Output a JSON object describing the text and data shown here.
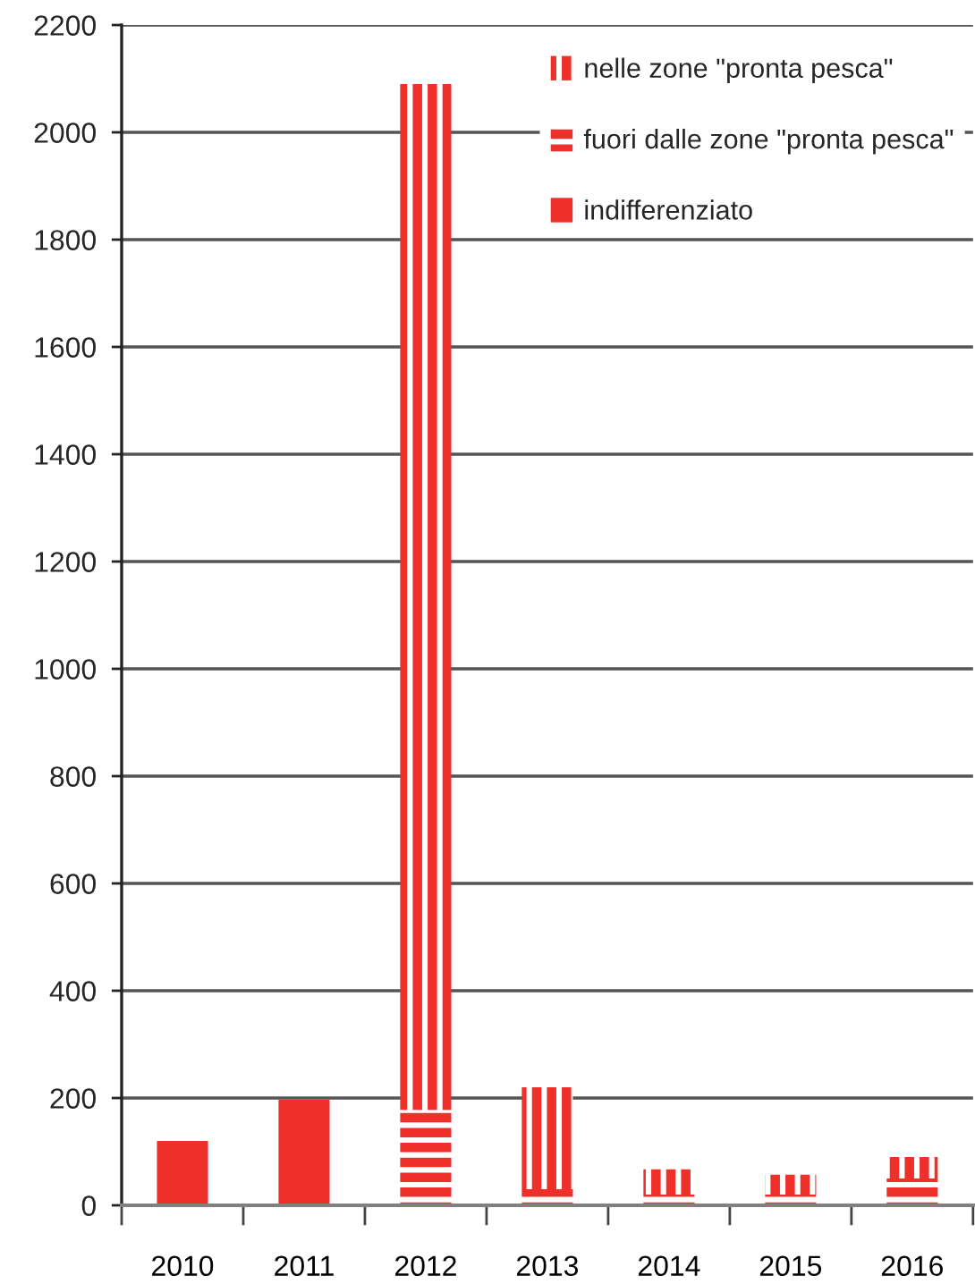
{
  "chart_data": {
    "type": "bar",
    "stacked": true,
    "categories": [
      "2010",
      "2011",
      "2012",
      "2013",
      "2014",
      "2015",
      "2016"
    ],
    "series": [
      {
        "name": "indifferenziato",
        "color": "#ee2f2a",
        "values": [
          120,
          197,
          null,
          null,
          null,
          null,
          null
        ]
      },
      {
        "name": "fuori dalle zone \"pronta pesca\"",
        "color": "#ee2f2a",
        "values": [
          null,
          null,
          178,
          30,
          20,
          20,
          50
        ]
      },
      {
        "name": "nelle zone \"pronta pesca\"",
        "color": "#ee2f2a",
        "values": [
          null,
          null,
          1912,
          190,
          47,
          37,
          40
        ]
      }
    ],
    "ylim": [
      0,
      2200
    ],
    "yticks": [
      0,
      200,
      400,
      600,
      800,
      1000,
      1200,
      1400,
      1600,
      1800,
      2000,
      2200
    ],
    "grid": "y",
    "legend": "top right"
  }
}
